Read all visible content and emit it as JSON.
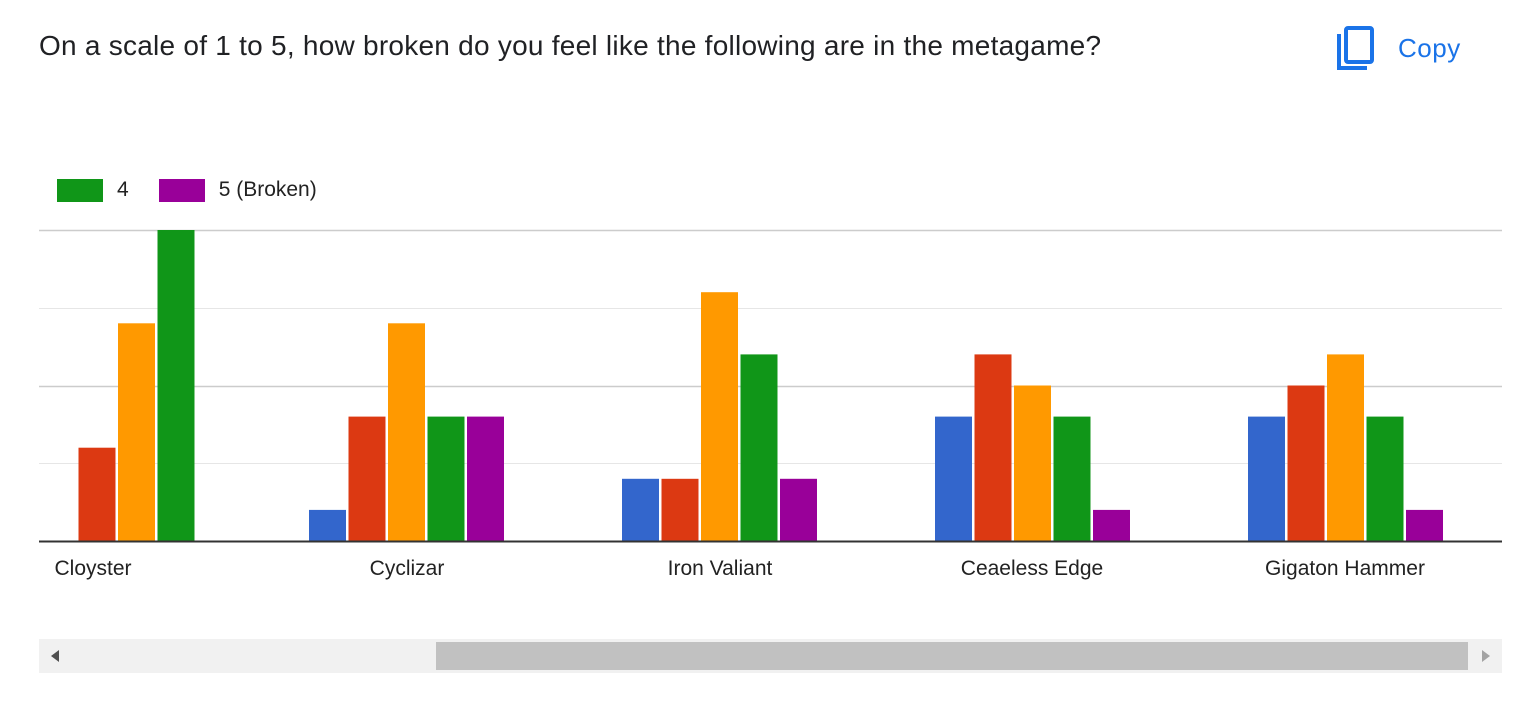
{
  "header": {
    "question": "On a scale of 1 to 5, how broken do you feel like the following are in the metagame?",
    "copy_label": "Copy",
    "copy_icon": "copy-icon"
  },
  "colors": {
    "accent": "#1a73e8",
    "series": [
      "#3366cc",
      "#dc3912",
      "#ff9900",
      "#109618",
      "#990099"
    ],
    "gridline": "#cccccc",
    "gridline_minor": "#e6e6e6",
    "baseline": "#333333"
  },
  "legend": {
    "visible_items": [
      {
        "label": "4",
        "color": "#109618"
      },
      {
        "label": "5 (Broken)",
        "color": "#990099"
      }
    ]
  },
  "chart_data": {
    "type": "bar",
    "categories": [
      "Cloyster",
      "Cyclizar",
      "Iron Valiant",
      "Ceaeless Edge",
      "Gigaton Hammer"
    ],
    "series": [
      {
        "name": "",
        "color": "#3366cc",
        "values": [
          0,
          1,
          2,
          4,
          4
        ]
      },
      {
        "name": "",
        "color": "#dc3912",
        "values": [
          3,
          4,
          2,
          6,
          5
        ]
      },
      {
        "name": "",
        "color": "#ff9900",
        "values": [
          7,
          7,
          8,
          5,
          6
        ]
      },
      {
        "name": "4",
        "color": "#109618",
        "values": [
          10,
          4,
          6,
          4,
          4
        ]
      },
      {
        "name": "5 (Broken)",
        "color": "#990099",
        "values": [
          0,
          4,
          2,
          1,
          1
        ]
      }
    ],
    "ylim": [
      0,
      10
    ],
    "grid": true,
    "legend_position": "top-left",
    "title": "",
    "xlabel": "",
    "ylabel": ""
  },
  "scrollbar": {
    "left_arrow_icon": "chevron-left-icon",
    "right_arrow_icon": "chevron-right-icon",
    "position_fraction": 0.27
  }
}
